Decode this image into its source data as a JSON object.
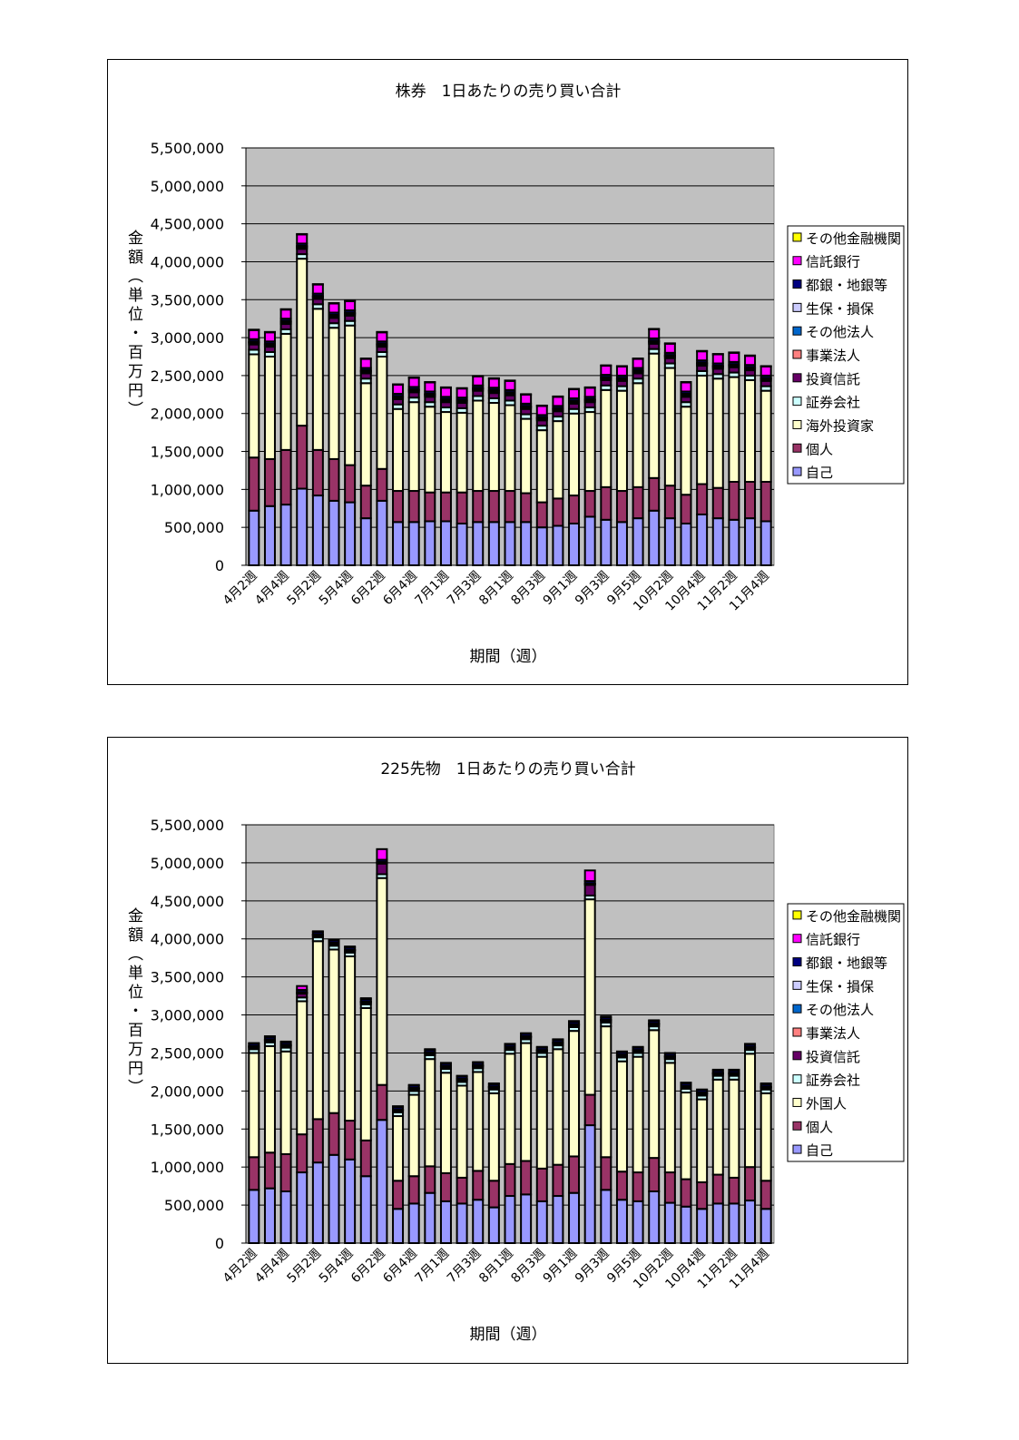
{
  "chart_data": [
    {
      "type": "bar",
      "stacked": true,
      "title": "株券　1日あたりの売り買い合計",
      "xlabel": "期間（週）",
      "ylabel": "金額（単位・百万円）",
      "ylim": [
        0,
        5500000
      ],
      "yticks": [
        "0",
        "500,000",
        "1,000,000",
        "1,500,000",
        "2,000,000",
        "2,500,000",
        "3,000,000",
        "3,500,000",
        "4,000,000",
        "4,500,000",
        "5,000,000",
        "5,500,000"
      ],
      "grid": true,
      "plot_background": "#C0C0C0",
      "legend_position": "right",
      "categories": [
        "4月2週",
        "",
        "4月4週",
        "",
        "5月2週",
        "",
        "5月4週",
        "",
        "6月2週",
        "",
        "6月4週",
        "",
        "7月1週",
        "",
        "7月3週",
        "",
        "8月1週",
        "",
        "8月3週",
        "",
        "9月1週",
        "",
        "9月3週",
        "",
        "9月5週",
        "",
        "10月2週",
        "",
        "10月4週",
        "",
        "11月2週",
        "",
        "11月4週"
      ],
      "series": [
        {
          "name": "自己",
          "color": "#9999FF",
          "values": [
            720000,
            780000,
            800000,
            1010000,
            920000,
            850000,
            830000,
            620000,
            850000,
            570000,
            570000,
            580000,
            580000,
            550000,
            570000,
            570000,
            570000,
            570000,
            500000,
            520000,
            550000,
            640000,
            600000,
            570000,
            620000,
            720000,
            620000,
            550000,
            670000,
            620000,
            600000,
            620000,
            580000
          ]
        },
        {
          "name": "個人",
          "color": "#993366",
          "values": [
            700000,
            620000,
            720000,
            830000,
            600000,
            550000,
            490000,
            430000,
            420000,
            410000,
            410000,
            380000,
            380000,
            410000,
            410000,
            410000,
            410000,
            380000,
            330000,
            360000,
            370000,
            340000,
            430000,
            410000,
            410000,
            430000,
            430000,
            380000,
            400000,
            400000,
            500000,
            480000,
            520000
          ]
        },
        {
          "name": "海外投資家",
          "color": "#FFFFCC",
          "values": [
            1360000,
            1350000,
            1530000,
            2200000,
            1860000,
            1730000,
            1840000,
            1350000,
            1480000,
            1080000,
            1170000,
            1130000,
            1060000,
            1050000,
            1190000,
            1160000,
            1130000,
            980000,
            950000,
            1020000,
            1080000,
            1040000,
            1280000,
            1320000,
            1370000,
            1640000,
            1550000,
            1160000,
            1430000,
            1440000,
            1380000,
            1340000,
            1200000
          ]
        },
        {
          "name": "証券会社",
          "color": "#CCFFFF",
          "values": [
            60000,
            60000,
            60000,
            60000,
            60000,
            60000,
            60000,
            60000,
            60000,
            60000,
            60000,
            60000,
            60000,
            60000,
            60000,
            60000,
            60000,
            60000,
            60000,
            60000,
            60000,
            60000,
            60000,
            60000,
            60000,
            60000,
            60000,
            60000,
            60000,
            60000,
            60000,
            60000,
            60000
          ]
        },
        {
          "name": "投資信託",
          "color": "#660066",
          "values": [
            70000,
            70000,
            70000,
            70000,
            70000,
            70000,
            70000,
            70000,
            70000,
            70000,
            70000,
            70000,
            70000,
            70000,
            70000,
            70000,
            70000,
            70000,
            70000,
            70000,
            70000,
            70000,
            70000,
            70000,
            70000,
            70000,
            70000,
            70000,
            70000,
            70000,
            70000,
            70000,
            70000
          ]
        },
        {
          "name": "事業法人",
          "color": "#FF8080",
          "values": [
            20000,
            20000,
            20000,
            20000,
            20000,
            20000,
            20000,
            20000,
            20000,
            20000,
            20000,
            20000,
            20000,
            20000,
            20000,
            20000,
            20000,
            20000,
            20000,
            20000,
            20000,
            20000,
            20000,
            20000,
            20000,
            20000,
            20000,
            20000,
            20000,
            20000,
            20000,
            20000,
            20000
          ]
        },
        {
          "name": "その他法人",
          "color": "#0066CC",
          "values": [
            10000,
            10000,
            10000,
            10000,
            10000,
            10000,
            10000,
            10000,
            10000,
            10000,
            10000,
            10000,
            10000,
            10000,
            10000,
            10000,
            10000,
            10000,
            10000,
            10000,
            10000,
            10000,
            10000,
            10000,
            10000,
            10000,
            10000,
            10000,
            10000,
            10000,
            10000,
            10000,
            10000
          ]
        },
        {
          "name": "生保・損保",
          "color": "#CCCCFF",
          "values": [
            10000,
            10000,
            10000,
            10000,
            10000,
            10000,
            10000,
            10000,
            10000,
            10000,
            10000,
            10000,
            10000,
            10000,
            10000,
            10000,
            10000,
            10000,
            10000,
            10000,
            10000,
            10000,
            10000,
            10000,
            10000,
            10000,
            10000,
            10000,
            10000,
            10000,
            10000,
            10000,
            10000
          ]
        },
        {
          "name": "都銀・地銀等",
          "color": "#000080",
          "values": [
            30000,
            30000,
            30000,
            30000,
            30000,
            30000,
            30000,
            30000,
            30000,
            30000,
            30000,
            30000,
            30000,
            30000,
            30000,
            30000,
            30000,
            30000,
            30000,
            30000,
            30000,
            30000,
            30000,
            30000,
            30000,
            30000,
            30000,
            30000,
            30000,
            30000,
            30000,
            30000,
            30000
          ]
        },
        {
          "name": "信託銀行",
          "color": "#FF00FF",
          "values": [
            120000,
            120000,
            120000,
            120000,
            120000,
            120000,
            120000,
            120000,
            120000,
            120000,
            120000,
            120000,
            120000,
            120000,
            120000,
            120000,
            120000,
            120000,
            120000,
            120000,
            120000,
            120000,
            120000,
            120000,
            120000,
            120000,
            120000,
            120000,
            120000,
            120000,
            120000,
            120000,
            120000
          ]
        },
        {
          "name": "その他金融機関",
          "color": "#FFFF00",
          "values": [
            5000,
            5000,
            5000,
            5000,
            5000,
            5000,
            5000,
            5000,
            5000,
            5000,
            5000,
            5000,
            5000,
            5000,
            5000,
            5000,
            5000,
            5000,
            5000,
            5000,
            5000,
            5000,
            5000,
            5000,
            5000,
            5000,
            5000,
            5000,
            5000,
            5000,
            5000,
            5000,
            5000
          ]
        }
      ]
    },
    {
      "type": "bar",
      "stacked": true,
      "title": "225先物　1日あたりの売り買い合計",
      "xlabel": "期間（週）",
      "ylabel": "金額（単位・百万円）",
      "ylim": [
        0,
        5500000
      ],
      "yticks": [
        "0",
        "500,000",
        "1,000,000",
        "1,500,000",
        "2,000,000",
        "2,500,000",
        "3,000,000",
        "3,500,000",
        "4,000,000",
        "4,500,000",
        "5,000,000",
        "5,500,000"
      ],
      "grid": true,
      "plot_background": "#C0C0C0",
      "legend_position": "right",
      "categories": [
        "4月2週",
        "",
        "4月4週",
        "",
        "5月2週",
        "",
        "5月4週",
        "",
        "6月2週",
        "",
        "6月4週",
        "",
        "7月1週",
        "",
        "7月3週",
        "",
        "8月1週",
        "",
        "8月3週",
        "",
        "9月1週",
        "",
        "9月3週",
        "",
        "9月5週",
        "",
        "10月2週",
        "",
        "10月4週",
        "",
        "11月2週",
        "",
        "11月4週"
      ],
      "series": [
        {
          "name": "自己",
          "color": "#9999FF",
          "values": [
            700000,
            720000,
            680000,
            930000,
            1060000,
            1160000,
            1100000,
            880000,
            1620000,
            450000,
            520000,
            660000,
            550000,
            520000,
            570000,
            470000,
            620000,
            640000,
            550000,
            620000,
            660000,
            1550000,
            700000,
            570000,
            550000,
            680000,
            530000,
            480000,
            450000,
            520000,
            520000,
            560000,
            450000
          ]
        },
        {
          "name": "個人",
          "color": "#993366",
          "values": [
            430000,
            470000,
            490000,
            500000,
            570000,
            550000,
            510000,
            470000,
            460000,
            370000,
            360000,
            350000,
            370000,
            340000,
            380000,
            350000,
            420000,
            440000,
            430000,
            410000,
            480000,
            400000,
            430000,
            370000,
            380000,
            440000,
            400000,
            360000,
            350000,
            380000,
            340000,
            440000,
            370000
          ]
        },
        {
          "name": "外国人",
          "color": "#FFFFCC",
          "values": [
            1370000,
            1400000,
            1350000,
            1750000,
            2340000,
            2150000,
            2160000,
            1740000,
            2720000,
            850000,
            1070000,
            1410000,
            1320000,
            1210000,
            1300000,
            1150000,
            1450000,
            1550000,
            1470000,
            1520000,
            1650000,
            2570000,
            1720000,
            1450000,
            1520000,
            1680000,
            1440000,
            1140000,
            1090000,
            1250000,
            1290000,
            1490000,
            1150000
          ]
        },
        {
          "name": "証券会社",
          "color": "#CCFFFF",
          "values": [
            50000,
            50000,
            50000,
            50000,
            50000,
            50000,
            50000,
            50000,
            50000,
            50000,
            50000,
            50000,
            50000,
            50000,
            50000,
            50000,
            50000,
            50000,
            50000,
            50000,
            50000,
            50000,
            50000,
            50000,
            50000,
            50000,
            50000,
            50000,
            50000,
            50000,
            50000,
            50000,
            50000
          ]
        },
        {
          "name": "投資信託",
          "color": "#660066",
          "values": [
            20000,
            20000,
            20000,
            50000,
            20000,
            20000,
            20000,
            20000,
            140000,
            20000,
            20000,
            20000,
            20000,
            20000,
            20000,
            20000,
            20000,
            20000,
            20000,
            20000,
            20000,
            140000,
            20000,
            20000,
            20000,
            20000,
            20000,
            20000,
            20000,
            20000,
            20000,
            20000,
            20000
          ]
        },
        {
          "name": "事業法人",
          "color": "#FF8080",
          "values": [
            10000,
            10000,
            10000,
            10000,
            10000,
            10000,
            10000,
            10000,
            10000,
            10000,
            10000,
            10000,
            10000,
            10000,
            10000,
            10000,
            10000,
            10000,
            10000,
            10000,
            10000,
            10000,
            10000,
            10000,
            10000,
            10000,
            10000,
            10000,
            10000,
            10000,
            10000,
            10000,
            10000
          ]
        },
        {
          "name": "その他法人",
          "color": "#0066CC",
          "values": [
            5000,
            5000,
            5000,
            5000,
            5000,
            5000,
            5000,
            5000,
            5000,
            5000,
            5000,
            5000,
            5000,
            5000,
            5000,
            5000,
            5000,
            5000,
            5000,
            5000,
            5000,
            5000,
            5000,
            5000,
            5000,
            5000,
            5000,
            5000,
            5000,
            5000,
            5000,
            5000,
            5000
          ]
        },
        {
          "name": "生保・損保",
          "color": "#CCCCFF",
          "values": [
            5000,
            5000,
            5000,
            5000,
            5000,
            5000,
            5000,
            5000,
            5000,
            5000,
            5000,
            5000,
            5000,
            5000,
            5000,
            5000,
            5000,
            5000,
            5000,
            5000,
            5000,
            5000,
            5000,
            5000,
            5000,
            5000,
            5000,
            5000,
            5000,
            5000,
            5000,
            5000,
            5000
          ]
        },
        {
          "name": "都銀・地銀等",
          "color": "#000080",
          "values": [
            30000,
            30000,
            30000,
            30000,
            30000,
            30000,
            30000,
            30000,
            30000,
            30000,
            30000,
            30000,
            30000,
            30000,
            30000,
            30000,
            30000,
            30000,
            30000,
            30000,
            30000,
            30000,
            30000,
            30000,
            30000,
            30000,
            30000,
            30000,
            30000,
            30000,
            30000,
            30000,
            30000
          ]
        },
        {
          "name": "信託銀行",
          "color": "#FF00FF",
          "values": [
            10000,
            10000,
            10000,
            50000,
            10000,
            10000,
            10000,
            10000,
            140000,
            10000,
            10000,
            10000,
            10000,
            10000,
            10000,
            10000,
            10000,
            10000,
            10000,
            10000,
            10000,
            140000,
            10000,
            10000,
            10000,
            10000,
            10000,
            10000,
            10000,
            10000,
            10000,
            10000,
            10000
          ]
        },
        {
          "name": "その他金融機関",
          "color": "#FFFF00",
          "values": [
            0,
            0,
            0,
            0,
            0,
            0,
            0,
            0,
            0,
            0,
            0,
            0,
            0,
            0,
            0,
            0,
            0,
            0,
            0,
            0,
            0,
            0,
            0,
            0,
            0,
            0,
            0,
            0,
            0,
            0,
            0,
            0,
            0
          ]
        }
      ]
    }
  ]
}
